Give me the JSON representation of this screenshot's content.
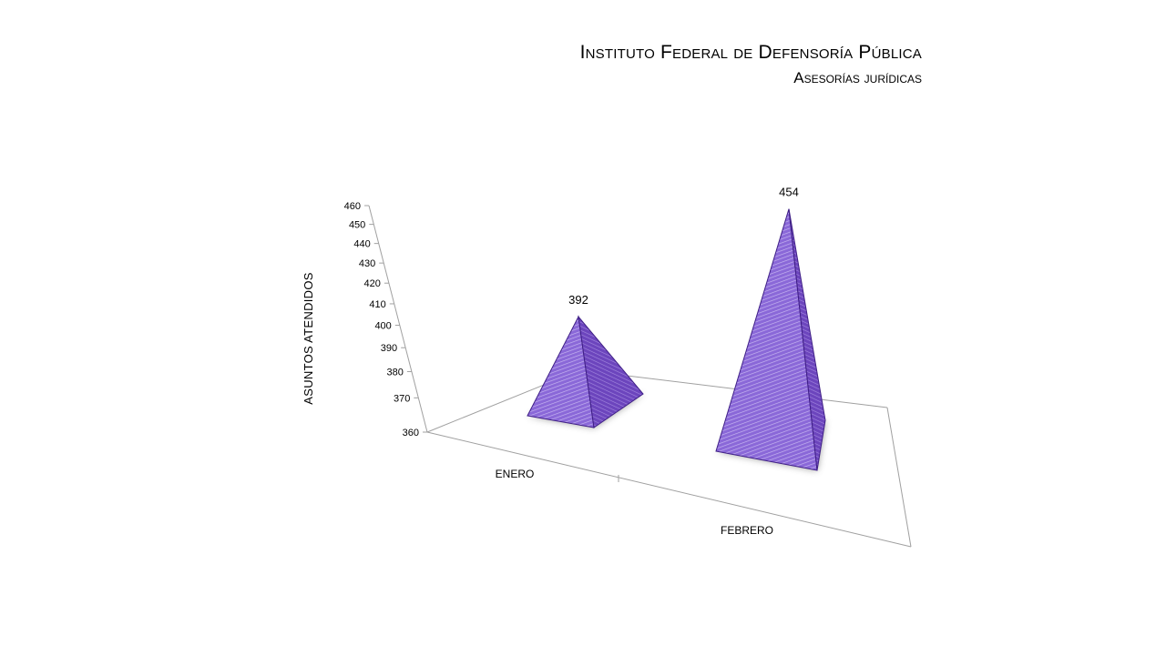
{
  "header": {
    "title": "Instituto Federal de Defensoría Pública",
    "subtitle": "Asesorías jurídicas"
  },
  "colors": {
    "pyramid_light": "#9b7fe0",
    "pyramid_mid": "#7b55c9",
    "pyramid_dark": "#5a34a8",
    "edge": "#3f1f86",
    "axis": "#a0a0a0"
  },
  "chart_data": {
    "type": "bar",
    "bar_shape": "3d-pyramid",
    "categories": [
      "ENERO",
      "FEBRERO"
    ],
    "values": [
      392,
      454
    ],
    "data_labels": [
      "392",
      "454"
    ],
    "ylabel": "ASUNTOS ATENDIDOS",
    "ylim": [
      360,
      460
    ],
    "yticks": [
      "360",
      "370",
      "380",
      "390",
      "400",
      "410",
      "420",
      "430",
      "440",
      "450",
      "460"
    ],
    "grid": false,
    "legend": "none"
  }
}
